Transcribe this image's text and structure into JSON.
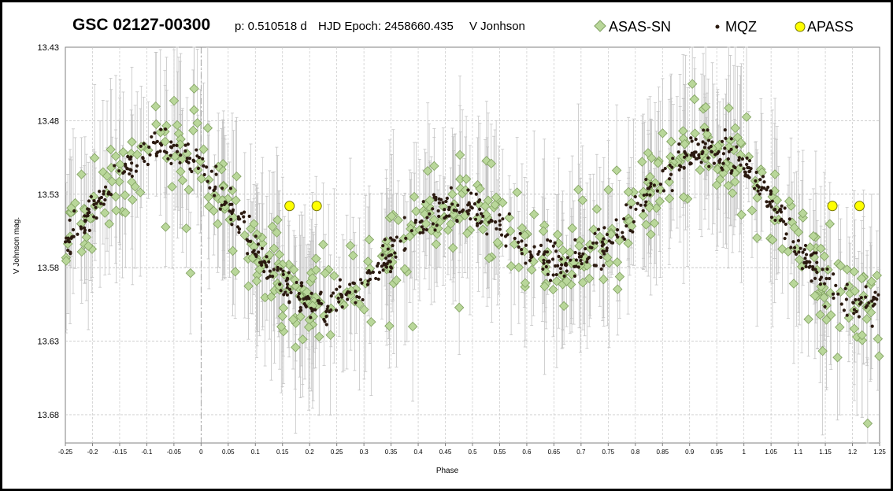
{
  "header": {
    "title": "GSC 02127-00300",
    "period": "p: 0.510518 d",
    "epoch": "HJD Epoch: 2458660.435",
    "band": "V Jonhson"
  },
  "chart_data": {
    "type": "scatter",
    "xlabel": "Phase",
    "ylabel": "V Johnson mag.",
    "xlim": [
      -0.25,
      1.25
    ],
    "ylim": [
      13.43,
      13.7
    ],
    "y_inverted": true,
    "grid": true,
    "legend_position": "top-right",
    "xticks": [
      "-0.25",
      "-0.2",
      "-0.15",
      "-0.1",
      "-0.05",
      "0",
      "0.05",
      "0.1",
      "0.15",
      "0.2",
      "0.25",
      "0.3",
      "0.35",
      "0.4",
      "0.45",
      "0.5",
      "0.55",
      "0.6",
      "0.65",
      "0.7",
      "0.75",
      "0.8",
      "0.85",
      "0.9",
      "0.95",
      "1",
      "1.05",
      "1.1",
      "1.15",
      "1.2",
      "1.25"
    ],
    "yticks": [
      "13.43",
      "13.48",
      "13.53",
      "13.58",
      "13.63",
      "13.68"
    ],
    "ytick_values": [
      13.43,
      13.48,
      13.53,
      13.58,
      13.63,
      13.68
    ],
    "series": [
      {
        "name": "ASAS-SN",
        "marker": "diamond",
        "color": "#b9d79a",
        "edge": "#7f9f5f",
        "error_bars": true
      },
      {
        "name": "MQZ",
        "marker": "dot",
        "color": "#2b1a10"
      },
      {
        "name": "APASS",
        "marker": "circle",
        "color": "#ffff00",
        "edge": "#777700"
      }
    ],
    "model": {
      "description_values": "approximate light curve used by the plot: mean magnitude and amplitudes",
      "mean": 13.555,
      "amp1": 0.025,
      "amp2": 0.035
    },
    "apass_points": [
      {
        "x": 0.163,
        "y": 13.538
      },
      {
        "x": 0.213,
        "y": 13.538
      },
      {
        "x": 1.163,
        "y": 13.538
      },
      {
        "x": 1.213,
        "y": 13.538
      }
    ]
  }
}
